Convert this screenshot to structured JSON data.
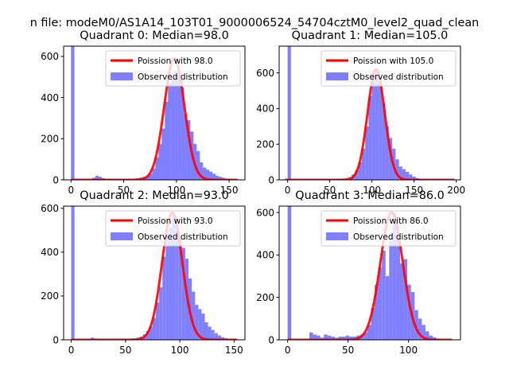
{
  "suptitle": "n file: modeM0/AS1A14_103T01_9000006524_54704cztM0_level2_quad_clean",
  "colors": {
    "hist": "#8080ff",
    "poisson": "#ff0000",
    "axes": "#000000"
  },
  "chart_data": [
    {
      "type": "bar",
      "title": "Quadrant 0: Median=98.0",
      "xlim": [
        -7,
        165
      ],
      "ylim": [
        0,
        650
      ],
      "xticks": [
        0,
        50,
        100,
        150
      ],
      "yticks": [
        0,
        200,
        400,
        600
      ],
      "median": 98.0,
      "peak": 590,
      "sigma": 9.6,
      "legend": [
        "Poission with 98.0",
        "Observed distribution"
      ],
      "bins": [
        [
          0,
          3.2,
          650
        ],
        [
          20,
          3.2,
          10
        ],
        [
          23,
          3.2,
          20
        ],
        [
          26,
          3.2,
          15
        ],
        [
          29,
          3.2,
          8
        ],
        [
          32,
          3.2,
          4
        ],
        [
          35,
          3.2,
          3
        ],
        [
          38,
          3.2,
          3
        ],
        [
          41,
          3.2,
          3
        ],
        [
          44,
          3.2,
          3
        ],
        [
          47,
          3.2,
          3
        ],
        [
          50,
          3.2,
          4
        ],
        [
          53,
          3.2,
          4
        ],
        [
          56,
          3.2,
          5
        ],
        [
          59,
          3.2,
          6
        ],
        [
          62,
          3.2,
          8
        ],
        [
          65,
          3.2,
          12
        ],
        [
          68,
          3.2,
          15
        ],
        [
          71,
          3.2,
          20
        ],
        [
          74,
          3.2,
          30
        ],
        [
          77,
          3.2,
          55
        ],
        [
          80,
          3.2,
          110
        ],
        [
          83,
          3.2,
          175
        ],
        [
          86,
          3.2,
          250
        ],
        [
          89,
          3.2,
          380
        ],
        [
          92,
          3.2,
          470
        ],
        [
          95,
          3.2,
          500
        ],
        [
          98,
          3.2,
          530
        ],
        [
          101,
          3.2,
          510
        ],
        [
          104,
          3.2,
          450
        ],
        [
          107,
          3.2,
          320
        ],
        [
          110,
          3.2,
          290
        ],
        [
          113,
          3.2,
          235
        ],
        [
          116,
          3.2,
          175
        ],
        [
          119,
          3.2,
          140
        ],
        [
          122,
          3.2,
          85
        ],
        [
          125,
          3.2,
          60
        ],
        [
          128,
          3.2,
          50
        ],
        [
          131,
          3.2,
          40
        ],
        [
          134,
          3.2,
          30
        ],
        [
          137,
          3.2,
          20
        ],
        [
          140,
          3.2,
          15
        ],
        [
          143,
          3.2,
          10
        ],
        [
          146,
          3.2,
          6
        ],
        [
          149,
          3.2,
          4
        ],
        [
          152,
          3.2,
          2
        ]
      ]
    },
    {
      "type": "bar",
      "title": "Quadrant 1: Median=105.0",
      "xlim": [
        -10,
        205
      ],
      "ylim": [
        0,
        750
      ],
      "xticks": [
        0,
        50,
        100,
        150,
        200
      ],
      "yticks": [
        0,
        200,
        400,
        600
      ],
      "median": 105.0,
      "peak": 620,
      "sigma": 10.2,
      "legend": [
        "Poission with 105.0",
        "Observed distribution"
      ],
      "bins": [
        [
          0,
          4,
          750
        ],
        [
          20,
          4,
          3
        ],
        [
          30,
          4,
          3
        ],
        [
          40,
          4,
          3
        ],
        [
          50,
          4,
          3
        ],
        [
          60,
          4,
          4
        ],
        [
          64,
          4,
          6
        ],
        [
          68,
          4,
          8
        ],
        [
          72,
          4,
          15
        ],
        [
          76,
          4,
          30
        ],
        [
          80,
          4,
          55
        ],
        [
          84,
          4,
          100
        ],
        [
          88,
          4,
          175
        ],
        [
          92,
          4,
          300
        ],
        [
          96,
          4,
          470
        ],
        [
          100,
          4,
          590
        ],
        [
          104,
          4,
          600
        ],
        [
          108,
          4,
          545
        ],
        [
          112,
          4,
          430
        ],
        [
          116,
          4,
          300
        ],
        [
          120,
          4,
          235
        ],
        [
          124,
          4,
          175
        ],
        [
          128,
          4,
          115
        ],
        [
          132,
          4,
          75
        ],
        [
          136,
          4,
          60
        ],
        [
          140,
          4,
          45
        ],
        [
          144,
          4,
          30
        ],
        [
          148,
          4,
          18
        ],
        [
          152,
          4,
          10
        ],
        [
          156,
          4,
          5
        ],
        [
          160,
          4,
          3
        ],
        [
          164,
          4,
          2
        ]
      ]
    },
    {
      "type": "bar",
      "title": "Quadrant 2: Median=93.0",
      "xlim": [
        -7,
        160
      ],
      "ylim": [
        0,
        610
      ],
      "xticks": [
        0,
        50,
        100,
        150
      ],
      "yticks": [
        0,
        200,
        400,
        600
      ],
      "median": 93.0,
      "peak": 580,
      "sigma": 9.4,
      "legend": [
        "Poission with 93.0",
        "Observed distribution"
      ],
      "bins": [
        [
          0,
          3,
          610
        ],
        [
          18,
          3,
          10
        ],
        [
          21,
          3,
          6
        ],
        [
          24,
          3,
          5
        ],
        [
          27,
          3,
          5
        ],
        [
          30,
          3,
          4
        ],
        [
          33,
          3,
          5
        ],
        [
          36,
          3,
          4
        ],
        [
          39,
          3,
          5
        ],
        [
          42,
          3,
          5
        ],
        [
          45,
          3,
          4
        ],
        [
          48,
          3,
          5
        ],
        [
          51,
          3,
          5
        ],
        [
          54,
          3,
          6
        ],
        [
          57,
          3,
          7
        ],
        [
          60,
          3,
          10
        ],
        [
          63,
          3,
          15
        ],
        [
          66,
          3,
          25
        ],
        [
          69,
          3,
          40
        ],
        [
          72,
          3,
          60
        ],
        [
          75,
          3,
          100
        ],
        [
          78,
          3,
          170
        ],
        [
          81,
          3,
          240
        ],
        [
          84,
          3,
          380
        ],
        [
          87,
          3,
          470
        ],
        [
          90,
          3,
          510
        ],
        [
          93,
          3,
          570
        ],
        [
          96,
          3,
          500
        ],
        [
          99,
          3,
          470
        ],
        [
          102,
          3,
          420
        ],
        [
          105,
          3,
          370
        ],
        [
          108,
          3,
          280
        ],
        [
          111,
          3,
          220
        ],
        [
          114,
          3,
          160
        ],
        [
          117,
          3,
          140
        ],
        [
          120,
          3,
          120
        ],
        [
          123,
          3,
          80
        ],
        [
          126,
          3,
          60
        ],
        [
          129,
          3,
          45
        ],
        [
          132,
          3,
          30
        ],
        [
          135,
          3,
          20
        ],
        [
          138,
          3,
          12
        ],
        [
          141,
          3,
          8
        ],
        [
          144,
          3,
          5
        ],
        [
          147,
          3,
          3
        ]
      ]
    },
    {
      "type": "bar",
      "title": "Quadrant 3: Median=86.0",
      "xlim": [
        -7,
        143
      ],
      "ylim": [
        0,
        630
      ],
      "xticks": [
        0,
        50,
        100
      ],
      "yticks": [
        0,
        200,
        400,
        600
      ],
      "median": 86.0,
      "peak": 600,
      "sigma": 9.3,
      "legend": [
        "Poission with 86.0",
        "Observed distribution"
      ],
      "bins": [
        [
          0,
          3,
          630
        ],
        [
          18,
          3,
          35
        ],
        [
          21,
          3,
          25
        ],
        [
          24,
          3,
          20
        ],
        [
          27,
          3,
          10
        ],
        [
          30,
          3,
          25
        ],
        [
          33,
          3,
          20
        ],
        [
          36,
          3,
          15
        ],
        [
          39,
          3,
          10
        ],
        [
          42,
          3,
          15
        ],
        [
          45,
          3,
          15
        ],
        [
          48,
          3,
          20
        ],
        [
          51,
          3,
          15
        ],
        [
          54,
          3,
          15
        ],
        [
          57,
          3,
          20
        ],
        [
          60,
          3,
          25
        ],
        [
          63,
          3,
          35
        ],
        [
          66,
          3,
          70
        ],
        [
          69,
          3,
          150
        ],
        [
          72,
          3,
          260
        ],
        [
          75,
          3,
          340
        ],
        [
          78,
          3,
          420
        ],
        [
          81,
          3,
          300
        ],
        [
          84,
          3,
          500
        ],
        [
          87,
          3,
          600
        ],
        [
          90,
          3,
          470
        ],
        [
          93,
          3,
          360
        ],
        [
          96,
          3,
          380
        ],
        [
          99,
          3,
          260
        ],
        [
          102,
          3,
          225
        ],
        [
          105,
          3,
          140
        ],
        [
          108,
          3,
          100
        ],
        [
          111,
          3,
          70
        ],
        [
          114,
          3,
          40
        ],
        [
          117,
          3,
          20
        ],
        [
          120,
          3,
          12
        ],
        [
          123,
          3,
          6
        ],
        [
          126,
          3,
          4
        ]
      ]
    }
  ]
}
